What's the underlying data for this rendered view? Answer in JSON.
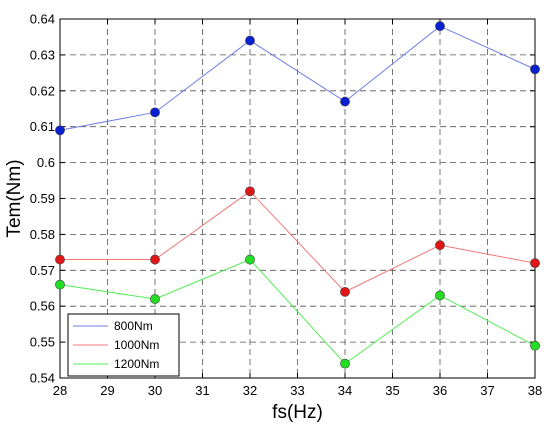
{
  "chart_data": {
    "type": "line",
    "xlabel": "fs(Hz)",
    "ylabel": "Tem(Nm)",
    "xlim": [
      28,
      38
    ],
    "ylim": [
      0.54,
      0.64
    ],
    "xticks": [
      "28",
      "29",
      "30",
      "31",
      "32",
      "33",
      "34",
      "35",
      "36",
      "37",
      "38"
    ],
    "yticks": [
      "0.54",
      "0.55",
      "0.56",
      "0.57",
      "0.58",
      "0.59",
      "0.6",
      "0.61",
      "0.62",
      "0.63",
      "0.64"
    ],
    "grid": true,
    "legend_position": "bottom-left",
    "series": [
      {
        "name": "800Nm",
        "line_color": "#6f7fe6",
        "marker_color": "#0a1fd0",
        "x": [
          28,
          30,
          32,
          34,
          36,
          38
        ],
        "y": [
          0.609,
          0.614,
          0.634,
          0.617,
          0.638,
          0.626
        ]
      },
      {
        "name": "1000Nm",
        "line_color": "#f07878",
        "marker_color": "#e01515",
        "x": [
          28,
          30,
          32,
          34,
          36,
          38
        ],
        "y": [
          0.573,
          0.573,
          0.592,
          0.564,
          0.577,
          0.572
        ]
      },
      {
        "name": "1200Nm",
        "line_color": "#55ee55",
        "marker_color": "#22dd22",
        "x": [
          28,
          30,
          32,
          34,
          36,
          38
        ],
        "y": [
          0.566,
          0.562,
          0.573,
          0.544,
          0.563,
          0.549
        ]
      }
    ]
  }
}
